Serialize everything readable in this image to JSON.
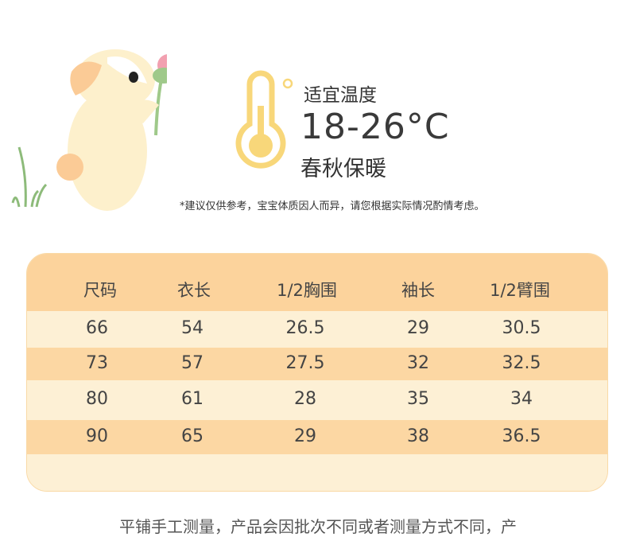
{
  "temperature": {
    "label": "适宜温度",
    "range": "18-26°C",
    "season": "春秋保暖"
  },
  "note": "*建议仅供参考，宝宝体质因人而异，请您根据实际情况酌情考虑。",
  "size_table": {
    "headers": [
      "尺码",
      "衣长",
      "1/2胸围",
      "袖长",
      "1/2臂围"
    ],
    "rows": [
      [
        "66",
        "54",
        "26.5",
        "29",
        "30.5"
      ],
      [
        "73",
        "57",
        "27.5",
        "32",
        "32.5"
      ],
      [
        "80",
        "61",
        "28",
        "35",
        "34"
      ],
      [
        "90",
        "65",
        "29",
        "38",
        "36.5"
      ]
    ]
  },
  "bottom_text": "平铺手工测量，产品会因批次不同或者测量方式不同，产",
  "colors": {
    "header": "#fcd39c",
    "row_light": "#fdf0d5",
    "row_dark": "#fcd7a3",
    "thermometer": "#f8d77a"
  }
}
